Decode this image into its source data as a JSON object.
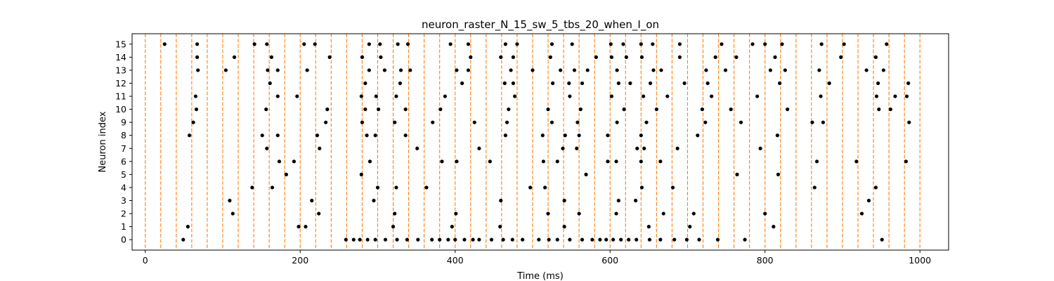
{
  "chart_data": {
    "type": "scatter",
    "title": "neuron_raster_N_15_sw_5_tbs_20_when_I_on",
    "xlabel": "Time (ms)",
    "ylabel": "Neuron index",
    "xlim": [
      -17,
      1037
    ],
    "ylim": [
      -0.8,
      15.8
    ],
    "xticks": [
      0,
      200,
      400,
      600,
      800,
      1000
    ],
    "yticks": [
      0,
      1,
      2,
      3,
      4,
      5,
      6,
      7,
      8,
      9,
      10,
      11,
      12,
      13,
      14,
      15
    ],
    "grid": false,
    "vlines": {
      "name": "time bins",
      "color": "#ff7f0e",
      "style": "dashed",
      "x": [
        0,
        20,
        40,
        60,
        80,
        100,
        120,
        140,
        160,
        180,
        200,
        220,
        240,
        260,
        280,
        300,
        320,
        340,
        360,
        380,
        400,
        420,
        440,
        460,
        480,
        500,
        520,
        540,
        560,
        580,
        600,
        620,
        640,
        660,
        680,
        700,
        720,
        740,
        760,
        780,
        800,
        820,
        840,
        860,
        880,
        900,
        920,
        940,
        960,
        980,
        1000
      ]
    },
    "series": [
      {
        "name": "spikes",
        "color": "#000000",
        "marker": "dot",
        "points": [
          [
            49,
            0
          ],
          [
            259,
            0
          ],
          [
            269,
            0
          ],
          [
            277,
            0
          ],
          [
            287,
            0
          ],
          [
            297,
            0
          ],
          [
            310,
            0
          ],
          [
            325,
            0
          ],
          [
            338,
            0
          ],
          [
            352,
            0
          ],
          [
            370,
            0
          ],
          [
            380,
            0
          ],
          [
            391,
            0
          ],
          [
            400,
            0
          ],
          [
            412,
            0
          ],
          [
            423,
            0
          ],
          [
            431,
            0
          ],
          [
            447,
            0
          ],
          [
            462,
            0
          ],
          [
            474,
            0
          ],
          [
            487,
            0
          ],
          [
            508,
            0
          ],
          [
            521,
            0
          ],
          [
            532,
            0
          ],
          [
            548,
            0
          ],
          [
            564,
            0
          ],
          [
            577,
            0
          ],
          [
            587,
            0
          ],
          [
            595,
            0
          ],
          [
            604,
            0
          ],
          [
            614,
            0
          ],
          [
            624,
            0
          ],
          [
            634,
            0
          ],
          [
            651,
            0
          ],
          [
            665,
            0
          ],
          [
            683,
            0
          ],
          [
            699,
            0
          ],
          [
            715,
            0
          ],
          [
            739,
            0
          ],
          [
            774,
            0
          ],
          [
            951,
            0
          ],
          [
            55,
            1
          ],
          [
            198,
            1
          ],
          [
            207,
            1
          ],
          [
            320,
            1
          ],
          [
            396,
            1
          ],
          [
            458,
            1
          ],
          [
            541,
            1
          ],
          [
            650,
            1
          ],
          [
            703,
            1
          ],
          [
            811,
            1
          ],
          [
            113,
            2
          ],
          [
            224,
            2
          ],
          [
            322,
            2
          ],
          [
            401,
            2
          ],
          [
            520,
            2
          ],
          [
            560,
            2
          ],
          [
            608,
            2
          ],
          [
            669,
            2
          ],
          [
            708,
            2
          ],
          [
            800,
            2
          ],
          [
            925,
            2
          ],
          [
            109,
            3
          ],
          [
            215,
            3
          ],
          [
            295,
            3
          ],
          [
            459,
            3
          ],
          [
            541,
            3
          ],
          [
            611,
            3
          ],
          [
            633,
            3
          ],
          [
            934,
            3
          ],
          [
            138,
            4
          ],
          [
            164,
            4
          ],
          [
            300,
            4
          ],
          [
            324,
            4
          ],
          [
            363,
            4
          ],
          [
            497,
            4
          ],
          [
            516,
            4
          ],
          [
            641,
            4
          ],
          [
            681,
            4
          ],
          [
            864,
            4
          ],
          [
            943,
            4
          ],
          [
            279,
            5
          ],
          [
            182,
            5
          ],
          [
            569,
            5
          ],
          [
            764,
            5
          ],
          [
            817,
            5
          ],
          [
            173,
            6
          ],
          [
            192,
            6
          ],
          [
            290,
            6
          ],
          [
            383,
            6
          ],
          [
            402,
            6
          ],
          [
            445,
            6
          ],
          [
            514,
            6
          ],
          [
            532,
            6
          ],
          [
            597,
            6
          ],
          [
            608,
            6
          ],
          [
            640,
            6
          ],
          [
            665,
            6
          ],
          [
            867,
            6
          ],
          [
            918,
            6
          ],
          [
            982,
            6
          ],
          [
            157,
            7
          ],
          [
            225,
            7
          ],
          [
            351,
            7
          ],
          [
            431,
            7
          ],
          [
            539,
            7
          ],
          [
            557,
            7
          ],
          [
            635,
            7
          ],
          [
            644,
            7
          ],
          [
            687,
            7
          ],
          [
            794,
            7
          ],
          [
            57,
            8
          ],
          [
            151,
            8
          ],
          [
            171,
            8
          ],
          [
            222,
            8
          ],
          [
            286,
            8
          ],
          [
            297,
            8
          ],
          [
            336,
            8
          ],
          [
            465,
            8
          ],
          [
            513,
            8
          ],
          [
            542,
            8
          ],
          [
            560,
            8
          ],
          [
            597,
            8
          ],
          [
            640,
            8
          ],
          [
            713,
            8
          ],
          [
            816,
            8
          ],
          [
            62,
            9
          ],
          [
            233,
            9
          ],
          [
            280,
            9
          ],
          [
            322,
            9
          ],
          [
            371,
            9
          ],
          [
            425,
            9
          ],
          [
            467,
            9
          ],
          [
            525,
            9
          ],
          [
            558,
            9
          ],
          [
            609,
            9
          ],
          [
            647,
            9
          ],
          [
            723,
            9
          ],
          [
            769,
            9
          ],
          [
            861,
            9
          ],
          [
            875,
            9
          ],
          [
            986,
            9
          ],
          [
            66,
            10
          ],
          [
            156,
            10
          ],
          [
            235,
            10
          ],
          [
            284,
            10
          ],
          [
            301,
            10
          ],
          [
            336,
            10
          ],
          [
            381,
            10
          ],
          [
            469,
            10
          ],
          [
            520,
            10
          ],
          [
            562,
            10
          ],
          [
            618,
            10
          ],
          [
            660,
            10
          ],
          [
            719,
            10
          ],
          [
            756,
            10
          ],
          [
            829,
            10
          ],
          [
            947,
            10
          ],
          [
            962,
            10
          ],
          [
            65,
            11
          ],
          [
            171,
            11
          ],
          [
            196,
            11
          ],
          [
            279,
            11
          ],
          [
            298,
            11
          ],
          [
            324,
            11
          ],
          [
            387,
            11
          ],
          [
            477,
            11
          ],
          [
            548,
            11
          ],
          [
            602,
            11
          ],
          [
            643,
            11
          ],
          [
            674,
            11
          ],
          [
            731,
            11
          ],
          [
            790,
            11
          ],
          [
            872,
            11
          ],
          [
            944,
            11
          ],
          [
            968,
            11
          ],
          [
            983,
            11
          ],
          [
            161,
            12
          ],
          [
            284,
            12
          ],
          [
            329,
            12
          ],
          [
            409,
            12
          ],
          [
            464,
            12
          ],
          [
            475,
            12
          ],
          [
            526,
            12
          ],
          [
            547,
            12
          ],
          [
            564,
            12
          ],
          [
            611,
            12
          ],
          [
            626,
            12
          ],
          [
            652,
            12
          ],
          [
            696,
            12
          ],
          [
            726,
            12
          ],
          [
            819,
            12
          ],
          [
            883,
            12
          ],
          [
            946,
            12
          ],
          [
            985,
            12
          ],
          [
            68,
            13
          ],
          [
            104,
            13
          ],
          [
            158,
            13
          ],
          [
            171,
            13
          ],
          [
            209,
            13
          ],
          [
            289,
            13
          ],
          [
            309,
            13
          ],
          [
            330,
            13
          ],
          [
            342,
            13
          ],
          [
            402,
            13
          ],
          [
            417,
            13
          ],
          [
            472,
            13
          ],
          [
            500,
            13
          ],
          [
            536,
            13
          ],
          [
            554,
            13
          ],
          [
            571,
            13
          ],
          [
            609,
            13
          ],
          [
            656,
            13
          ],
          [
            666,
            13
          ],
          [
            724,
            13
          ],
          [
            749,
            13
          ],
          [
            807,
            13
          ],
          [
            826,
            13
          ],
          [
            870,
            13
          ],
          [
            931,
            13
          ],
          [
            953,
            13
          ],
          [
            67,
            14
          ],
          [
            115,
            14
          ],
          [
            163,
            14
          ],
          [
            238,
            14
          ],
          [
            280,
            14
          ],
          [
            304,
            14
          ],
          [
            420,
            14
          ],
          [
            459,
            14
          ],
          [
            475,
            14
          ],
          [
            523,
            14
          ],
          [
            582,
            14
          ],
          [
            602,
            14
          ],
          [
            621,
            14
          ],
          [
            641,
            14
          ],
          [
            690,
            14
          ],
          [
            736,
            14
          ],
          [
            763,
            14
          ],
          [
            813,
            14
          ],
          [
            898,
            14
          ],
          [
            943,
            14
          ],
          [
            25,
            15
          ],
          [
            67,
            15
          ],
          [
            141,
            15
          ],
          [
            157,
            15
          ],
          [
            205,
            15
          ],
          [
            219,
            15
          ],
          [
            289,
            15
          ],
          [
            303,
            15
          ],
          [
            326,
            15
          ],
          [
            339,
            15
          ],
          [
            394,
            15
          ],
          [
            417,
            15
          ],
          [
            465,
            15
          ],
          [
            480,
            15
          ],
          [
            525,
            15
          ],
          [
            551,
            15
          ],
          [
            601,
            15
          ],
          [
            617,
            15
          ],
          [
            640,
            15
          ],
          [
            655,
            15
          ],
          [
            690,
            15
          ],
          [
            744,
            15
          ],
          [
            784,
            15
          ],
          [
            800,
            15
          ],
          [
            822,
            15
          ],
          [
            873,
            15
          ],
          [
            902,
            15
          ],
          [
            957,
            15
          ]
        ]
      }
    ]
  }
}
